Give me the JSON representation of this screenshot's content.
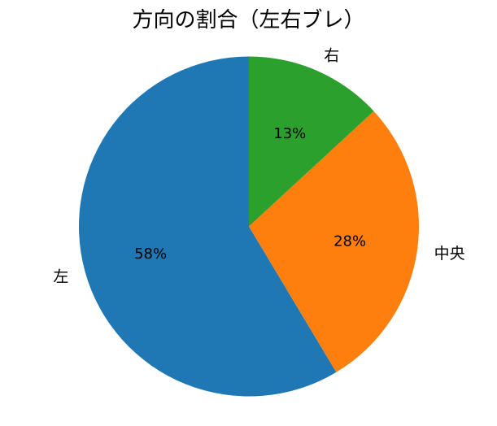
{
  "chart_data": {
    "type": "pie",
    "title": "方向の割合（左右ブレ）",
    "slices": [
      {
        "id": "left",
        "label": "左",
        "value": 58,
        "pct_label": "58%",
        "color": "#1f77b4"
      },
      {
        "id": "center",
        "label": "中央",
        "value": 28,
        "pct_label": "28%",
        "color": "#ff7f0e"
      },
      {
        "id": "right",
        "label": "右",
        "value": 13,
        "pct_label": "13%",
        "color": "#2ca02c"
      }
    ],
    "start_angle_deg": 90,
    "counterclockwise": true,
    "label_distance": 1.1,
    "pct_distance": 0.6,
    "text_color": "#000000",
    "background_color": "#ffffff",
    "legend": "none"
  }
}
